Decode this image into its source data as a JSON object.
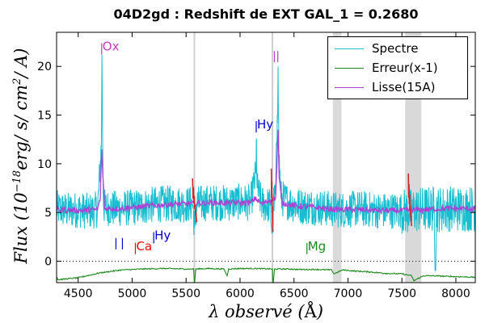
{
  "chart_data": {
    "type": "line",
    "title": "04D2gd : Redshift de EXT GAL_1 = 0.2680",
    "xlabel": "λ observé (Å)",
    "ylabel": "Flux (10^-18 erg/s/cm²/A)",
    "ylabel_parts": {
      "main": "Flux (10",
      "exp": "−18",
      "rest": "erg/ s/ cm",
      "exp2": "2",
      "tail": "/ A)"
    },
    "xlabel_parts": {
      "pre": "λ observé (",
      "unit": "Å",
      "post": ")"
    },
    "xlim": [
      4300,
      8180
    ],
    "ylim": [
      -2.2,
      23.5
    ],
    "xticks": [
      4500,
      5000,
      5500,
      6000,
      6500,
      7000,
      7500,
      8000
    ],
    "yticks": [
      0,
      5,
      10,
      15,
      20
    ],
    "legend_position": "top-right",
    "grid": false,
    "colors": {
      "spectrum": "#17becf",
      "error": "#1a8a1a",
      "smooth": "#b03fd4",
      "flux_line": "#d62728",
      "band": "#d9d9d9"
    },
    "series": [
      {
        "name": "Spectre",
        "color": "#17becf",
        "points": [
          [
            4310,
            5.4
          ],
          [
            4400,
            5.2
          ],
          [
            4500,
            5.3
          ],
          [
            4600,
            5.1
          ],
          [
            4680,
            5.3
          ],
          [
            4715,
            12.0
          ],
          [
            4720,
            21.2
          ],
          [
            4725,
            14.5
          ],
          [
            4735,
            5.6
          ],
          [
            4800,
            5.4
          ],
          [
            4900,
            5.4
          ],
          [
            5000,
            5.5
          ],
          [
            5100,
            5.6
          ],
          [
            5200,
            5.8
          ],
          [
            5300,
            5.9
          ],
          [
            5400,
            5.9
          ],
          [
            5500,
            5.8
          ],
          [
            5560,
            5.9
          ],
          [
            5580,
            3.5
          ],
          [
            5600,
            5.9
          ],
          [
            5700,
            6.0
          ],
          [
            5800,
            6.0
          ],
          [
            5900,
            6.0
          ],
          [
            6000,
            6.1
          ],
          [
            6100,
            6.0
          ],
          [
            6148,
            9.0
          ],
          [
            6152,
            12.6
          ],
          [
            6158,
            7.5
          ],
          [
            6200,
            5.9
          ],
          [
            6280,
            5.7
          ],
          [
            6298,
            2.9
          ],
          [
            6310,
            5.8
          ],
          [
            6330,
            7.0
          ],
          [
            6345,
            15.0
          ],
          [
            6352,
            20.0
          ],
          [
            6360,
            11.0
          ],
          [
            6380,
            6.5
          ],
          [
            6500,
            5.8
          ],
          [
            6600,
            5.6
          ],
          [
            6700,
            5.6
          ],
          [
            6800,
            5.4
          ],
          [
            6900,
            5.3
          ],
          [
            7000,
            5.3
          ],
          [
            7100,
            5.4
          ],
          [
            7200,
            5.3
          ],
          [
            7300,
            5.2
          ],
          [
            7400,
            5.2
          ],
          [
            7500,
            5.2
          ],
          [
            7560,
            5.0
          ],
          [
            7600,
            5.2
          ],
          [
            7700,
            5.3
          ],
          [
            7800,
            5.4
          ],
          [
            7810,
            -0.8
          ],
          [
            7820,
            5.3
          ],
          [
            7900,
            5.4
          ],
          [
            8000,
            5.4
          ],
          [
            8100,
            5.4
          ],
          [
            8180,
            5.4
          ]
        ]
      },
      {
        "name": "Erreur(x-1)",
        "color": "#1a8a1a",
        "points": [
          [
            4310,
            -1.9
          ],
          [
            4500,
            -1.7
          ],
          [
            4700,
            -1.2
          ],
          [
            4900,
            -0.9
          ],
          [
            5100,
            -0.8
          ],
          [
            5300,
            -0.75
          ],
          [
            5500,
            -0.8
          ],
          [
            5570,
            -0.8
          ],
          [
            5578,
            -2.4
          ],
          [
            5590,
            -0.8
          ],
          [
            5700,
            -0.75
          ],
          [
            5850,
            -0.8
          ],
          [
            5880,
            -1.5
          ],
          [
            5895,
            -0.8
          ],
          [
            6000,
            -0.75
          ],
          [
            6150,
            -0.75
          ],
          [
            6300,
            -0.8
          ],
          [
            6305,
            -2.6
          ],
          [
            6320,
            -0.8
          ],
          [
            6450,
            -0.8
          ],
          [
            6550,
            -0.85
          ],
          [
            6700,
            -0.85
          ],
          [
            6850,
            -0.9
          ],
          [
            6870,
            -1.3
          ],
          [
            6950,
            -0.9
          ],
          [
            7050,
            -1.0
          ],
          [
            7200,
            -1.1
          ],
          [
            7350,
            -1.25
          ],
          [
            7500,
            -1.3
          ],
          [
            7590,
            -1.5
          ],
          [
            7610,
            -2.0
          ],
          [
            7700,
            -1.5
          ],
          [
            7800,
            -1.5
          ],
          [
            7900,
            -1.55
          ],
          [
            8050,
            -1.6
          ],
          [
            8180,
            -1.65
          ]
        ]
      },
      {
        "name": "Lisse(15A)",
        "color": "#b03fd4",
        "points": [
          [
            4310,
            5.3
          ],
          [
            4500,
            5.2
          ],
          [
            4680,
            5.3
          ],
          [
            4705,
            6.5
          ],
          [
            4718,
            11.5
          ],
          [
            4728,
            9.0
          ],
          [
            4745,
            5.4
          ],
          [
            4900,
            5.4
          ],
          [
            5100,
            5.6
          ],
          [
            5300,
            5.8
          ],
          [
            5500,
            5.9
          ],
          [
            5700,
            6.0
          ],
          [
            5900,
            6.0
          ],
          [
            6100,
            6.0
          ],
          [
            6145,
            6.5
          ],
          [
            6155,
            6.3
          ],
          [
            6200,
            5.9
          ],
          [
            6330,
            6.5
          ],
          [
            6345,
            11.0
          ],
          [
            6352,
            13.5
          ],
          [
            6362,
            8.5
          ],
          [
            6390,
            6.0
          ],
          [
            6500,
            5.7
          ],
          [
            6700,
            5.5
          ],
          [
            6900,
            5.3
          ],
          [
            7100,
            5.3
          ],
          [
            7300,
            5.2
          ],
          [
            7500,
            5.2
          ],
          [
            7700,
            5.3
          ],
          [
            7900,
            5.4
          ],
          [
            8180,
            5.4
          ]
        ]
      }
    ],
    "red_segments": [
      {
        "x": [
          5560,
          5600
        ],
        "y": [
          8.5,
          4.0
        ]
      },
      {
        "x": [
          6290,
          6305
        ],
        "y": [
          9.5,
          3.0
        ]
      },
      {
        "x": [
          7560,
          7590
        ],
        "y": [
          9.0,
          3.6
        ]
      }
    ],
    "shaded_bands": [
      [
        6860,
        6940
      ],
      [
        7530,
        7680
      ]
    ],
    "vertical_lines": [
      5577,
      6300
    ],
    "line_markers": [
      {
        "text": "Ox",
        "color": "#c03cc0",
        "x": 4718,
        "y": 21.8,
        "ticks": [
          4718
        ]
      },
      {
        "text": "",
        "color": "#c03cc0",
        "x": 6324,
        "y": 21.0,
        "ticks": [
          6318,
          6350
        ]
      },
      {
        "text": "Hy",
        "color": "#0000cc",
        "x": 6150,
        "y": 13.8,
        "ticks": [
          6150
        ]
      },
      {
        "text": "",
        "color": "#0000cc",
        "x": 4850,
        "y": 1.8,
        "ticks": [
          4850,
          4910
        ]
      },
      {
        "text": "Ca",
        "color": "#ff0000",
        "x": 5030,
        "y": 1.3,
        "ticks": [
          5030
        ]
      },
      {
        "text": "Hy",
        "color": "#0000cc",
        "x": 5205,
        "y": 2.4,
        "ticks": [
          5200
        ]
      },
      {
        "text": "Mg",
        "color": "#1a8a1a",
        "x": 6620,
        "y": 1.3,
        "ticks": [
          6620
        ]
      }
    ]
  }
}
